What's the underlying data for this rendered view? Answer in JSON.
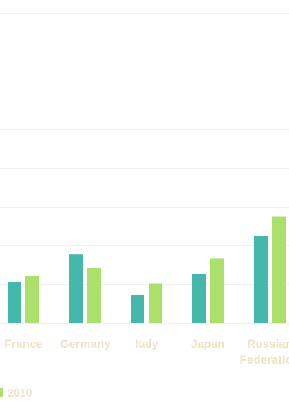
{
  "chart_data": {
    "type": "bar",
    "categories": [
      "France",
      "Germany",
      "Italy",
      "Japan",
      "Russian Federation"
    ],
    "category_lines": [
      [
        "France"
      ],
      [
        "Germany"
      ],
      [
        "Italy"
      ],
      [
        "Japan"
      ],
      [
        "Russian",
        "Federation"
      ]
    ],
    "series": [
      {
        "name": "",
        "color": "#45b8ac",
        "values": [
          1.05,
          1.77,
          0.71,
          1.26,
          2.24
        ]
      },
      {
        "name": "2010",
        "color": "#abe06a",
        "values": [
          1.21,
          1.42,
          1.02,
          1.66,
          2.74
        ]
      }
    ],
    "ylim": [
      0,
      8
    ],
    "gridline_values": [
      0,
      1,
      2,
      3,
      4,
      5,
      6,
      7,
      8
    ],
    "grid": true,
    "legend": {
      "position": "bottom-left",
      "entries": [
        "2010"
      ]
    },
    "title": "",
    "xlabel": "",
    "ylabel": ""
  }
}
